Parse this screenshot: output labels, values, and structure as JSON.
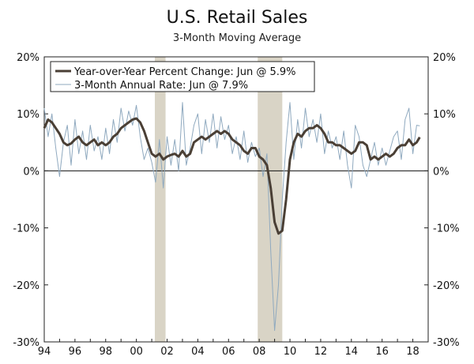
{
  "chart_data": {
    "type": "line",
    "title": "U.S. Retail Sales",
    "subtitle": "3-Month Moving Average",
    "xlabel": "",
    "ylabel": "",
    "x_tick_labels": [
      "94",
      "96",
      "98",
      "00",
      "02",
      "04",
      "06",
      "08",
      "10",
      "12",
      "14",
      "16",
      "18"
    ],
    "x_ticks": [
      1994,
      1996,
      1998,
      2000,
      2002,
      2004,
      2006,
      2008,
      2010,
      2012,
      2014,
      2016,
      2018
    ],
    "xlim": [
      1994,
      2019
    ],
    "ylim": [
      -30,
      20
    ],
    "y_ticks": [
      20,
      10,
      0,
      -10,
      -20,
      -30
    ],
    "y_tick_labels": [
      "20%",
      "10%",
      "0%",
      "-10%",
      "-20%",
      "-30%"
    ],
    "grid": false,
    "zero_line": true,
    "legend_position": "top-left",
    "recessions": [
      [
        2001.2,
        2001.9
      ],
      [
        2007.9,
        2009.5
      ]
    ],
    "recession_color": "#d9d4c6",
    "series": [
      {
        "name": "Year-over-Year Percent Change: Jun @ 5.9%",
        "color": "#4a3f35",
        "x": [
          1994.0,
          1994.25,
          1994.5,
          1994.75,
          1995.0,
          1995.25,
          1995.5,
          1995.75,
          1996.0,
          1996.25,
          1996.5,
          1996.75,
          1997.0,
          1997.25,
          1997.5,
          1997.75,
          1998.0,
          1998.25,
          1998.5,
          1998.75,
          1999.0,
          1999.25,
          1999.5,
          1999.75,
          2000.0,
          2000.25,
          2000.5,
          2000.75,
          2001.0,
          2001.25,
          2001.5,
          2001.75,
          2002.0,
          2002.25,
          2002.5,
          2002.75,
          2003.0,
          2003.25,
          2003.5,
          2003.75,
          2004.0,
          2004.25,
          2004.5,
          2004.75,
          2005.0,
          2005.25,
          2005.5,
          2005.75,
          2006.0,
          2006.25,
          2006.5,
          2006.75,
          2007.0,
          2007.25,
          2007.5,
          2007.75,
          2008.0,
          2008.25,
          2008.5,
          2008.75,
          2009.0,
          2009.25,
          2009.5,
          2009.75,
          2010.0,
          2010.25,
          2010.5,
          2010.75,
          2011.0,
          2011.25,
          2011.5,
          2011.75,
          2012.0,
          2012.25,
          2012.5,
          2012.75,
          2013.0,
          2013.25,
          2013.5,
          2013.75,
          2014.0,
          2014.25,
          2014.5,
          2014.75,
          2015.0,
          2015.25,
          2015.5,
          2015.75,
          2016.0,
          2016.25,
          2016.5,
          2016.75,
          2017.0,
          2017.25,
          2017.5,
          2017.75,
          2018.0,
          2018.25,
          2018.45
        ],
        "values": [
          7.5,
          9.0,
          8.5,
          7.5,
          6.5,
          5.0,
          4.5,
          4.8,
          5.5,
          6.0,
          5.0,
          4.5,
          5.0,
          5.5,
          4.5,
          5.0,
          4.5,
          5.0,
          6.0,
          6.5,
          7.5,
          8.0,
          8.5,
          9.0,
          9.2,
          8.5,
          7.0,
          5.0,
          3.0,
          2.5,
          3.0,
          2.0,
          2.5,
          2.8,
          3.0,
          2.5,
          3.5,
          2.5,
          3.0,
          5.0,
          5.5,
          6.0,
          5.5,
          6.0,
          6.5,
          7.0,
          6.5,
          7.0,
          6.5,
          5.5,
          5.0,
          4.5,
          3.5,
          3.0,
          4.0,
          4.0,
          2.5,
          2.0,
          1.0,
          -3.0,
          -9.0,
          -11.0,
          -10.5,
          -5.0,
          2.0,
          5.0,
          6.5,
          6.0,
          7.0,
          7.5,
          7.5,
          8.0,
          7.5,
          6.5,
          5.0,
          5.0,
          4.5,
          4.5,
          4.0,
          3.5,
          3.0,
          3.5,
          5.0,
          5.0,
          4.5,
          2.0,
          2.5,
          2.0,
          2.5,
          3.0,
          2.5,
          3.0,
          4.0,
          4.5,
          4.5,
          5.5,
          4.5,
          5.0,
          5.9
        ]
      },
      {
        "name": "3-Month Annual Rate: Jun @ 7.9%",
        "color": "#8fa9bf",
        "x": [
          1994.0,
          1994.25,
          1994.5,
          1994.75,
          1995.0,
          1995.25,
          1995.5,
          1995.75,
          1996.0,
          1996.25,
          1996.5,
          1996.75,
          1997.0,
          1997.25,
          1997.5,
          1997.75,
          1998.0,
          1998.25,
          1998.5,
          1998.75,
          1999.0,
          1999.25,
          1999.5,
          1999.75,
          2000.0,
          2000.25,
          2000.5,
          2000.75,
          2001.0,
          2001.25,
          2001.5,
          2001.75,
          2002.0,
          2002.25,
          2002.5,
          2002.75,
          2003.0,
          2003.25,
          2003.5,
          2003.75,
          2004.0,
          2004.25,
          2004.5,
          2004.75,
          2005.0,
          2005.25,
          2005.5,
          2005.75,
          2006.0,
          2006.25,
          2006.5,
          2006.75,
          2007.0,
          2007.25,
          2007.5,
          2007.75,
          2008.0,
          2008.25,
          2008.5,
          2008.75,
          2009.0,
          2009.25,
          2009.5,
          2009.75,
          2010.0,
          2010.25,
          2010.5,
          2010.75,
          2011.0,
          2011.25,
          2011.5,
          2011.75,
          2012.0,
          2012.25,
          2012.5,
          2012.75,
          2013.0,
          2013.25,
          2013.5,
          2013.75,
          2014.0,
          2014.25,
          2014.5,
          2014.75,
          2015.0,
          2015.25,
          2015.5,
          2015.75,
          2016.0,
          2016.25,
          2016.5,
          2016.75,
          2017.0,
          2017.25,
          2017.5,
          2017.75,
          2018.0,
          2018.25,
          2018.45
        ],
        "values": [
          11.0,
          6.0,
          10.0,
          4.0,
          -1.0,
          5.0,
          8.0,
          1.0,
          9.0,
          3.0,
          7.0,
          2.0,
          8.0,
          3.5,
          6.0,
          2.0,
          7.5,
          3.0,
          9.0,
          5.0,
          11.0,
          7.0,
          10.5,
          8.0,
          11.5,
          6.0,
          2.0,
          4.0,
          1.5,
          -2.0,
          5.5,
          -3.0,
          6.0,
          1.0,
          5.5,
          0.0,
          12.0,
          1.0,
          4.0,
          8.0,
          10.0,
          3.0,
          9.0,
          5.0,
          10.0,
          4.0,
          9.5,
          5.5,
          8.0,
          3.0,
          6.0,
          2.0,
          7.0,
          1.5,
          5.0,
          2.5,
          4.0,
          -1.0,
          3.0,
          -14.0,
          -28.0,
          -20.0,
          -5.0,
          5.0,
          12.0,
          2.0,
          9.0,
          4.0,
          11.0,
          6.0,
          9.0,
          5.0,
          10.0,
          3.0,
          7.0,
          4.0,
          6.0,
          2.0,
          7.0,
          1.0,
          -3.0,
          8.0,
          6.0,
          1.0,
          -1.0,
          2.0,
          5.0,
          1.0,
          4.0,
          1.0,
          3.5,
          6.0,
          7.0,
          2.0,
          9.0,
          11.0,
          3.0,
          8.0,
          7.9
        ]
      }
    ]
  }
}
